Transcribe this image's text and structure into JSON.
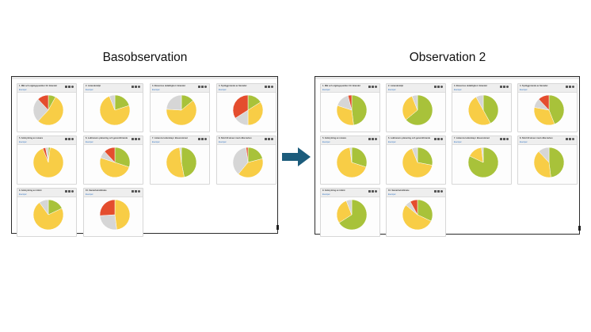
{
  "headings": {
    "left": "Basobservation",
    "right": "Observation 2"
  },
  "card_link": "Exempel",
  "colors": {
    "green": "#a8c23a",
    "yellow": "#f8cd46",
    "gray": "#d6d6d6",
    "red": "#e44d2e",
    "arrow": "#1c5c7c"
  },
  "icons": [
    "list-icon",
    "grid-icon",
    "info-icon"
  ],
  "charts": {
    "left": [
      {
        "title": "1. Mål och utgångspunkter för lärandet",
        "slices": [
          {
            "c": "green",
            "v": 8
          },
          {
            "c": "yellow",
            "v": 54
          },
          {
            "c": "gray",
            "v": 26
          },
          {
            "c": "red",
            "v": 12
          }
        ]
      },
      {
        "title": "2. Lärandemiljö",
        "slices": [
          {
            "c": "green",
            "v": 20
          },
          {
            "c": "yellow",
            "v": 74
          },
          {
            "c": "gray",
            "v": 6
          }
        ]
      },
      {
        "title": "3. Elevernas delaktighet i lärandet",
        "slices": [
          {
            "c": "green",
            "v": 14
          },
          {
            "c": "yellow",
            "v": 62
          },
          {
            "c": "gray",
            "v": 24
          }
        ]
      },
      {
        "title": "4. Synliggörande av lärandet",
        "slices": [
          {
            "c": "green",
            "v": 16
          },
          {
            "c": "yellow",
            "v": 34
          },
          {
            "c": "gray",
            "v": 16
          },
          {
            "c": "red",
            "v": 34
          }
        ]
      },
      {
        "title": "5. Anknytning av nuvara",
        "slices": [
          {
            "c": "green",
            "v": 2
          },
          {
            "c": "yellow",
            "v": 92
          },
          {
            "c": "red",
            "v": 3
          },
          {
            "c": "gray",
            "v": 3
          }
        ]
      },
      {
        "title": "6. Lektionens planering och genomförande",
        "slices": [
          {
            "c": "green",
            "v": 30
          },
          {
            "c": "yellow",
            "v": 50
          },
          {
            "c": "gray",
            "v": 8
          },
          {
            "c": "red",
            "v": 12
          }
        ]
      },
      {
        "title": "7. Lärarens ledarskap i klassrummet",
        "slices": [
          {
            "c": "green",
            "v": 47
          },
          {
            "c": "yellow",
            "v": 51
          },
          {
            "c": "gray",
            "v": 2
          }
        ]
      },
      {
        "title": "8. Stöd till elever med olika behov",
        "slices": [
          {
            "c": "green",
            "v": 21
          },
          {
            "c": "yellow",
            "v": 40
          },
          {
            "c": "gray",
            "v": 37
          },
          {
            "c": "red",
            "v": 2
          }
        ]
      },
      {
        "title": "9. Anknytning av intänt",
        "slices": [
          {
            "c": "green",
            "v": 18
          },
          {
            "c": "yellow",
            "v": 72
          },
          {
            "c": "gray",
            "v": 10
          }
        ]
      },
      {
        "title": "10. Samarbetsklimate",
        "slices": [
          {
            "c": "yellow",
            "v": 48
          },
          {
            "c": "gray",
            "v": 26
          },
          {
            "c": "red",
            "v": 26
          }
        ]
      }
    ],
    "right": [
      {
        "title": "1. Mål och utgångspunkter för lärandet",
        "slices": [
          {
            "c": "green",
            "v": 48
          },
          {
            "c": "yellow",
            "v": 32
          },
          {
            "c": "gray",
            "v": 16
          },
          {
            "c": "red",
            "v": 4
          }
        ]
      },
      {
        "title": "2. Lärandemiljö",
        "slices": [
          {
            "c": "green",
            "v": 64
          },
          {
            "c": "yellow",
            "v": 30
          },
          {
            "c": "gray",
            "v": 6
          }
        ]
      },
      {
        "title": "3. Elevernas delaktighet i lärandet",
        "slices": [
          {
            "c": "green",
            "v": 42
          },
          {
            "c": "yellow",
            "v": 50
          },
          {
            "c": "gray",
            "v": 8
          }
        ]
      },
      {
        "title": "4. Synliggörande av lärandet",
        "slices": [
          {
            "c": "green",
            "v": 44
          },
          {
            "c": "yellow",
            "v": 34
          },
          {
            "c": "gray",
            "v": 10
          },
          {
            "c": "red",
            "v": 12
          }
        ]
      },
      {
        "title": "5. Anknytning av nuvara",
        "slices": [
          {
            "c": "green",
            "v": 30
          },
          {
            "c": "yellow",
            "v": 68
          },
          {
            "c": "gray",
            "v": 2
          }
        ]
      },
      {
        "title": "6. Lektionens planering och genomförande",
        "slices": [
          {
            "c": "green",
            "v": 28
          },
          {
            "c": "yellow",
            "v": 66
          },
          {
            "c": "gray",
            "v": 6
          }
        ]
      },
      {
        "title": "7. Lärarens ledarskap i klassrummet",
        "slices": [
          {
            "c": "green",
            "v": 82
          },
          {
            "c": "yellow",
            "v": 16
          },
          {
            "c": "gray",
            "v": 2
          }
        ]
      },
      {
        "title": "8. Stöd till elever med olika behov",
        "slices": [
          {
            "c": "green",
            "v": 48
          },
          {
            "c": "yellow",
            "v": 40
          },
          {
            "c": "gray",
            "v": 12
          }
        ]
      },
      {
        "title": "9. Anknytning av intänt",
        "slices": [
          {
            "c": "green",
            "v": 66
          },
          {
            "c": "yellow",
            "v": 28
          },
          {
            "c": "gray",
            "v": 6
          }
        ]
      },
      {
        "title": "10. Samarbetsklimate",
        "slices": [
          {
            "c": "green",
            "v": 32
          },
          {
            "c": "yellow",
            "v": 54
          },
          {
            "c": "gray",
            "v": 6
          },
          {
            "c": "red",
            "v": 8
          }
        ]
      }
    ]
  }
}
